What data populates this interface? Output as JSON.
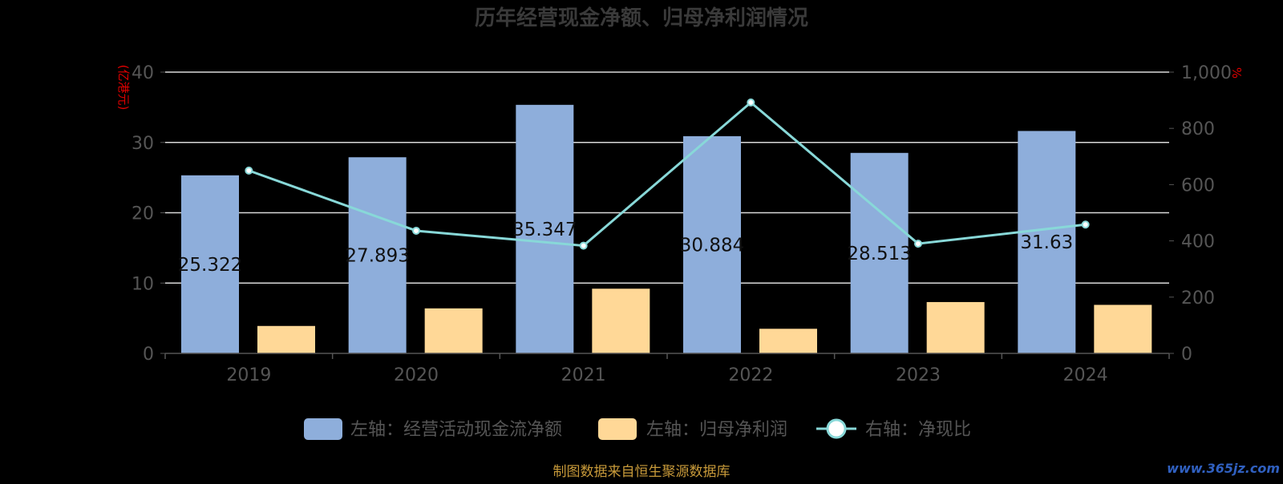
{
  "chart_data": {
    "type": "bar",
    "title": "历年经营现金净额、归母净利润情况",
    "categories": [
      "2019",
      "2020",
      "2021",
      "2022",
      "2023",
      "2024"
    ],
    "left_axis": {
      "unit_label": "(亿港元)",
      "range": [
        0,
        40
      ],
      "ticks": [
        "0",
        "10",
        "20",
        "30",
        "40"
      ]
    },
    "right_axis": {
      "unit_label": "%",
      "range": [
        0,
        1000
      ],
      "ticks": [
        "0",
        "200",
        "400",
        "600",
        "800",
        "1,000"
      ]
    },
    "series": [
      {
        "name": "左轴：经营活动现金流净额",
        "type": "bar",
        "axis": "left",
        "color": "#8eaedb",
        "values": [
          25.322,
          27.893,
          35.347,
          30.884,
          28.513,
          31.63
        ],
        "labels": [
          "25.322",
          "27.893",
          "35.347",
          "30.884",
          "28.513",
          "31.63"
        ]
      },
      {
        "name": "左轴：归母净利润",
        "type": "bar",
        "axis": "left",
        "color": "#ffd897",
        "values": [
          3.9,
          6.4,
          9.2,
          3.5,
          7.3,
          6.9
        ]
      },
      {
        "name": "右轴：净现比",
        "type": "line",
        "axis": "right",
        "color": "#88d8d8",
        "values": [
          650,
          436,
          383,
          892,
          390,
          458
        ]
      }
    ],
    "legend_position": "bottom",
    "grid": true
  },
  "source_note": "制图数据来自恒生聚源数据库",
  "watermark": "www.365jz.com",
  "colors": {
    "background": "#000000",
    "title": "#3a3a3a",
    "axis_text": "#555555",
    "gridline": "#d9d9d9",
    "unit_label": "#e00000",
    "source_note": "#c89a3a",
    "bar_label": "#111111",
    "watermark": "#3060c0"
  }
}
